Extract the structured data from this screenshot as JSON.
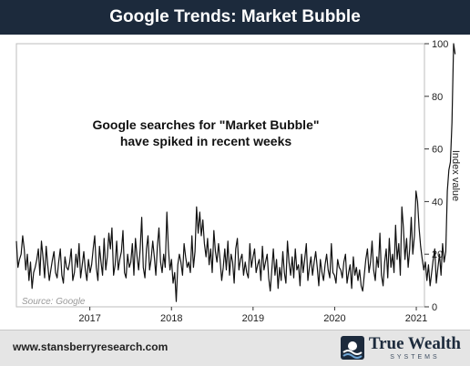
{
  "chart_data": {
    "type": "line",
    "title": "Google Trends: Market Bubble",
    "ylabel": "Index value",
    "annotation": [
      "Google searches for \"Market Bubble\"",
      "have spiked in recent weeks"
    ],
    "source": "Source: Google",
    "y_ticks": [
      "0",
      "20",
      "40",
      "60",
      "80",
      "100"
    ],
    "x_ticks": [
      {
        "label": "2017",
        "value": 2017
      },
      {
        "label": "2018",
        "value": 2018
      },
      {
        "label": "2019",
        "value": 2019
      },
      {
        "label": "2020",
        "value": 2020
      },
      {
        "label": "2021",
        "value": 2021
      }
    ],
    "xlim": [
      2016.1,
      2021.1
    ],
    "ylim": [
      0,
      100
    ],
    "grid": false,
    "line_color": "#111111",
    "series": [
      {
        "x_start": 2016.1,
        "x_step": 0.0192,
        "values": [
          25,
          15,
          18,
          20,
          27,
          22,
          14,
          20,
          10,
          17,
          7,
          13,
          15,
          18,
          22,
          12,
          25,
          19,
          11,
          23,
          16,
          10,
          14,
          18,
          21,
          13,
          11,
          17,
          22,
          12,
          9,
          19,
          15,
          14,
          17,
          22,
          10,
          13,
          20,
          15,
          24,
          11,
          16,
          21,
          14,
          10,
          18,
          13,
          16,
          22,
          27,
          15,
          10,
          23,
          17,
          12,
          26,
          14,
          19,
          28,
          22,
          30,
          12,
          16,
          25,
          14,
          18,
          21,
          29,
          13,
          11,
          20,
          15,
          17,
          24,
          12,
          26,
          19,
          14,
          22,
          34,
          15,
          11,
          22,
          27,
          14,
          18,
          25,
          19,
          12,
          23,
          30,
          17,
          13,
          20,
          15,
          36,
          22,
          14,
          18,
          9,
          13,
          2,
          16,
          20,
          17,
          12,
          24,
          19,
          15,
          17,
          13,
          27,
          15,
          21,
          38,
          28,
          36,
          27,
          33,
          24,
          19,
          26,
          16,
          22,
          13,
          29,
          21,
          17,
          24,
          18,
          10,
          15,
          22,
          14,
          25,
          12,
          20,
          17,
          9,
          22,
          26,
          14,
          18,
          20,
          12,
          17,
          13,
          11,
          24,
          15,
          19,
          22,
          13,
          16,
          18,
          10,
          23,
          14,
          17,
          20,
          11,
          6,
          14,
          22,
          12,
          18,
          7,
          15,
          10,
          21,
          13,
          9,
          25,
          17,
          12,
          19,
          11,
          22,
          14,
          16,
          8,
          20,
          13,
          18,
          24,
          10,
          15,
          19,
          12,
          17,
          21,
          15,
          8,
          18,
          13,
          10,
          16,
          20,
          14,
          11,
          24,
          13,
          12,
          9,
          18,
          15,
          14,
          11,
          17,
          20,
          9,
          13,
          16,
          7,
          19,
          12,
          15,
          10,
          14,
          8,
          6,
          12,
          18,
          22,
          13,
          17,
          25,
          14,
          10,
          19,
          15,
          28,
          12,
          8,
          17,
          22,
          11,
          26,
          15,
          20,
          13,
          31,
          18,
          24,
          12,
          38,
          30,
          18,
          26,
          15,
          22,
          34,
          20,
          27,
          44,
          40,
          30,
          23,
          18,
          14,
          17,
          10,
          16,
          8,
          13,
          18,
          22,
          9,
          15,
          20,
          12,
          24,
          17,
          21,
          44,
          52,
          55,
          70,
          100,
          96
        ]
      }
    ]
  },
  "footer": {
    "url": "www.stansberryresearch.com",
    "logo_name": "True Wealth",
    "logo_sub": "SYSTEMS",
    "logo_icon": "sun-wave-logo-icon"
  }
}
